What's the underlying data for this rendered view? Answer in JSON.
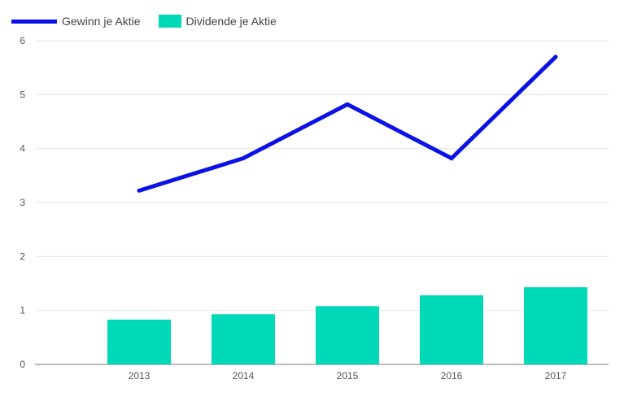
{
  "chart_data": {
    "type": "bar",
    "categories": [
      "2013",
      "2014",
      "2015",
      "2016",
      "2017"
    ],
    "series": [
      {
        "name": "Gewinn je Aktie",
        "kind": "line",
        "color": "#0a12e6",
        "values": [
          3.22,
          3.82,
          4.82,
          3.82,
          5.7
        ]
      },
      {
        "name": "Dividende je Aktie",
        "kind": "bar",
        "color": "#00d9b8",
        "values": [
          0.83,
          0.93,
          1.08,
          1.28,
          1.43
        ]
      }
    ],
    "y_ticks": [
      "0",
      "1",
      "2",
      "3",
      "4",
      "5",
      "6"
    ],
    "ylim": [
      0,
      6
    ],
    "grid": true,
    "legend_position": "top-left"
  }
}
